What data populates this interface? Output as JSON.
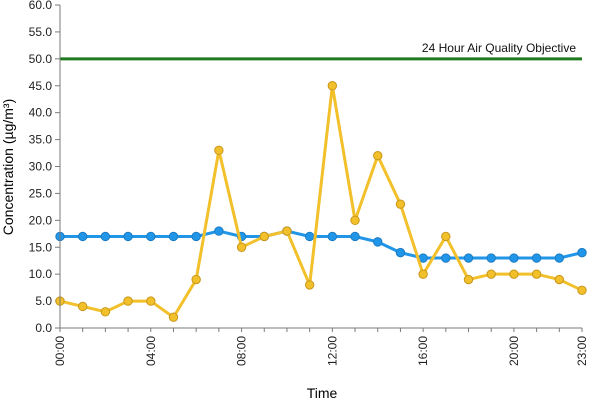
{
  "chart_data": {
    "type": "line",
    "title": "",
    "xlabel": "Time",
    "ylabel": "Concentration (µg/m³)",
    "ylim": [
      0,
      60
    ],
    "yticks": [
      "0.0",
      "5.0",
      "10.0",
      "15.0",
      "20.0",
      "25.0",
      "30.0",
      "35.0",
      "40.0",
      "45.0",
      "50.0",
      "55.0",
      "60.0"
    ],
    "xlim": [
      0,
      23
    ],
    "x": [
      0,
      1,
      2,
      3,
      4,
      5,
      6,
      7,
      8,
      9,
      10,
      11,
      12,
      13,
      14,
      15,
      16,
      17,
      18,
      19,
      20,
      21,
      22,
      23
    ],
    "xticks": [
      {
        "x": 0,
        "label": "00:00"
      },
      {
        "x": 4,
        "label": "04:00"
      },
      {
        "x": 8,
        "label": "08:00"
      },
      {
        "x": 12,
        "label": "12:00"
      },
      {
        "x": 16,
        "label": "16:00"
      },
      {
        "x": 20,
        "label": "20:00"
      },
      {
        "x": 23,
        "label": "23:00"
      }
    ],
    "grid": false,
    "legend": "none",
    "series": [
      {
        "color": "#2196e8",
        "values": [
          17,
          17,
          17,
          17,
          17,
          17,
          17,
          18,
          17,
          17,
          18,
          17,
          17,
          17,
          16,
          14,
          13,
          13,
          13,
          13,
          13,
          13,
          13,
          14
        ]
      },
      {
        "color": "#f2c02b",
        "values": [
          5,
          4,
          3,
          5,
          5,
          2,
          9,
          33,
          15,
          17,
          18,
          8,
          45,
          20,
          32,
          23,
          10,
          17,
          9,
          10,
          10,
          10,
          9,
          7
        ]
      }
    ],
    "reference_line": {
      "value": 50,
      "label": "24 Hour Air Quality Objective",
      "color": "#1f7a1f"
    }
  }
}
